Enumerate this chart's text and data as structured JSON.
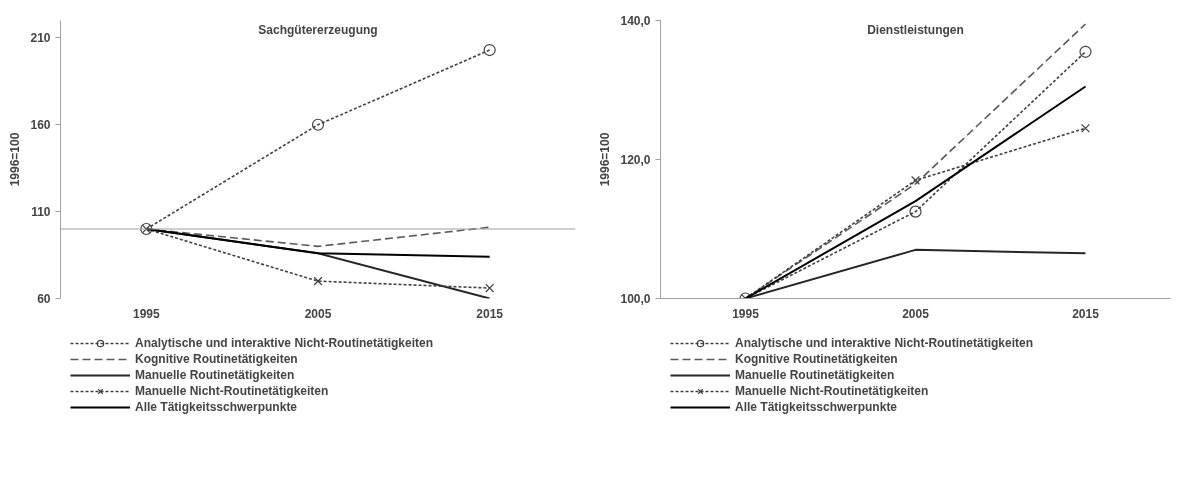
{
  "chart_data": [
    {
      "type": "line",
      "title": "Sachgütererzeugung",
      "ylabel": "1996=100",
      "categories": [
        "1995",
        "2005",
        "2015"
      ],
      "ylim": [
        60,
        220
      ],
      "yticks": [
        60,
        110,
        160,
        210
      ],
      "grid": false,
      "legend": "bottom",
      "ref_lines": [
        {
          "axis": "y",
          "value": 100,
          "label": null,
          "color": "#a0a0a0"
        }
      ],
      "series": [
        {
          "name": "Analytische und interaktive Nicht-Routinetätigkeiten",
          "color": "#404040",
          "marker": "circle",
          "line_style": "dotted",
          "values": [
            100,
            160,
            203
          ]
        },
        {
          "name": "Kognitive Routinetätigkeiten",
          "color": "#595959",
          "marker": "none",
          "line_style": "dashed",
          "values": [
            100,
            90,
            101
          ]
        },
        {
          "name": "Manuelle Routinetätigkeiten",
          "color": "#262626",
          "marker": "none",
          "line_style": "solid",
          "values": [
            100,
            86,
            60
          ]
        },
        {
          "name": "Manuelle Nicht-Routinetätigkeiten",
          "color": "#404040",
          "marker": "cross",
          "line_style": "dotted",
          "values": [
            100,
            70,
            66
          ]
        },
        {
          "name": "Alle Tätigkeitsschwerpunkte",
          "color": "#000000",
          "marker": "none",
          "line_style": "solid",
          "values": [
            100,
            86,
            84
          ]
        }
      ]
    },
    {
      "type": "line",
      "title": "Dienstleistungen",
      "ylabel": "1996=100",
      "categories": [
        "1995",
        "2005",
        "2015"
      ],
      "ylim": [
        100,
        140
      ],
      "yticks": [
        {
          "value": 100,
          "label": "100,0"
        },
        {
          "value": 120,
          "label": "120,0"
        },
        {
          "value": 140,
          "label": "140,0"
        }
      ],
      "grid": false,
      "legend": "bottom",
      "series": [
        {
          "name": "Analytische und interaktive Nicht-Routinetätigkeiten",
          "color": "#404040",
          "marker": "circle",
          "line_style": "dotted",
          "values": [
            100,
            112.5,
            135.5
          ]
        },
        {
          "name": "Kognitive Routinetätigkeiten",
          "color": "#595959",
          "marker": "none",
          "line_style": "dashed",
          "values": [
            100,
            116.5,
            139.5
          ]
        },
        {
          "name": "Manuelle Routinetätigkeiten",
          "color": "#262626",
          "marker": "none",
          "line_style": "solid",
          "values": [
            100,
            107,
            106.5
          ]
        },
        {
          "name": "Manuelle Nicht-Routinetätigkeiten",
          "color": "#404040",
          "marker": "cross",
          "line_style": "dotted",
          "values": [
            100,
            117,
            124.5
          ]
        },
        {
          "name": "Alle Tätigkeitsschwerpunkte",
          "color": "#000000",
          "marker": "none",
          "line_style": "solid",
          "values": [
            100,
            114,
            130.5
          ]
        }
      ]
    }
  ]
}
